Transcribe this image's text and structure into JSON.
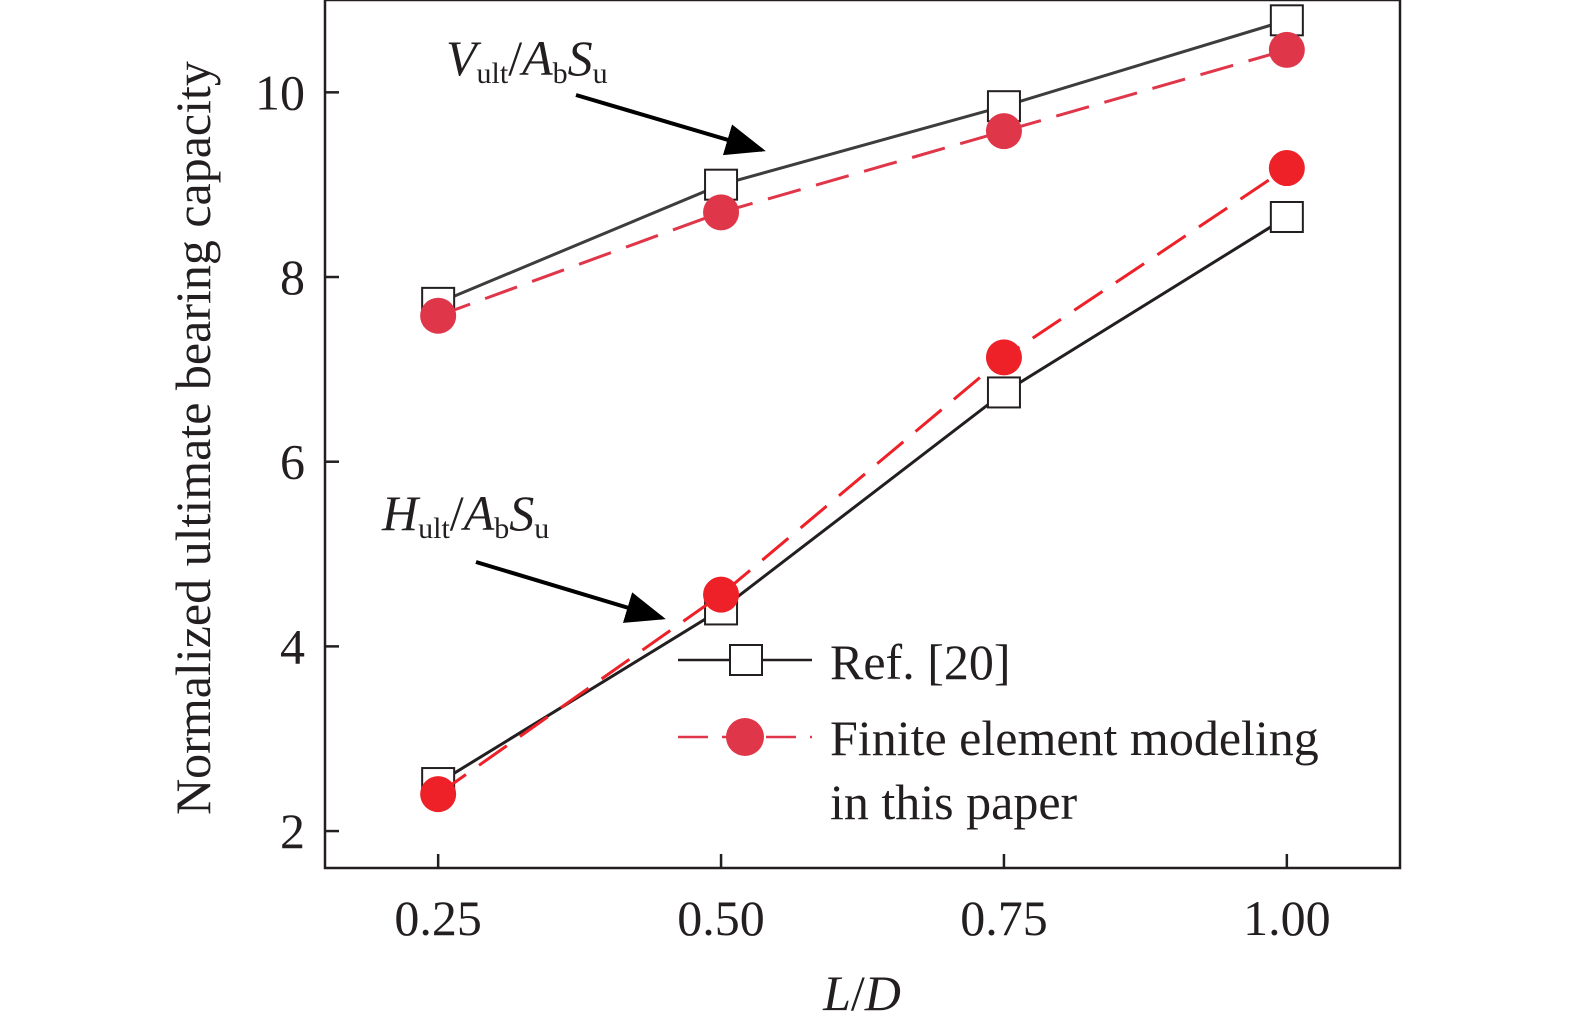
{
  "chart_data": {
    "type": "line",
    "title": "",
    "xlabel": "L/D",
    "ylabel": "Normalized ultimate bearing capacity",
    "xlim": [
      0.15,
      1.1
    ],
    "ylim": [
      1.6,
      11.0
    ],
    "x_ticks": [
      "0.25",
      "0.50",
      "0.75",
      "1.00"
    ],
    "y_ticks": [
      "2",
      "4",
      "6",
      "8",
      "10"
    ],
    "x": [
      0.25,
      0.5,
      0.75,
      1.0
    ],
    "series": [
      {
        "name": "Ref. [20]",
        "group": "Vult",
        "marker": "square",
        "line": "solid",
        "color": "#3d3d3d",
        "values": [
          7.72,
          9.0,
          9.85,
          10.78
        ]
      },
      {
        "name": "Finite element modeling in this paper",
        "group": "Vult",
        "marker": "circle",
        "line": "dashed",
        "color": "#e0364a",
        "values": [
          7.58,
          8.7,
          9.58,
          10.46
        ]
      },
      {
        "name": "Ref. [20]",
        "group": "Hult",
        "marker": "square",
        "line": "solid",
        "color": "#231f20",
        "values": [
          2.52,
          4.4,
          6.75,
          8.65
        ]
      },
      {
        "name": "Finite element modeling in this paper",
        "group": "Hult",
        "marker": "circle",
        "line": "dashed",
        "color": "#ed2127",
        "values": [
          2.4,
          4.56,
          7.13,
          9.18
        ]
      }
    ],
    "legend": {
      "placement": "lower-right",
      "entries": [
        {
          "label": "Ref. [20]",
          "marker": "square",
          "line": "solid"
        },
        {
          "label_line1": "Finite element modeling",
          "label_line2": "in this paper",
          "marker": "circle",
          "line": "dashed"
        }
      ]
    },
    "annotations": {
      "vult": {
        "main": "V",
        "sub1": "ult",
        "slash": "/",
        "A": "A",
        "sub2": "b",
        "S": "S",
        "sub3": "u"
      },
      "hult": {
        "main": "H",
        "sub1": "ult",
        "slash": "/",
        "A": "A",
        "sub2": "b",
        "S": "S",
        "sub3": "u"
      }
    },
    "xlabel_parts": {
      "L": "L",
      "slash": "/",
      "D": "D"
    },
    "grid": false
  }
}
